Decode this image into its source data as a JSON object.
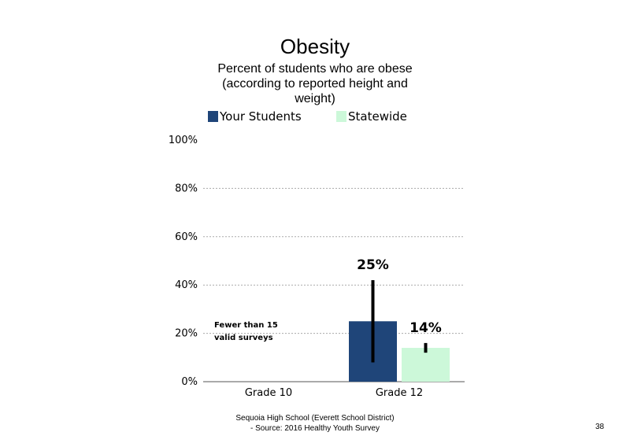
{
  "chart_data": {
    "type": "bar",
    "title": "Obesity",
    "subtitle": "Percent of students who are obese (according to reported height and weight)",
    "categories": [
      "Grade 10",
      "Grade 12"
    ],
    "series": [
      {
        "name": "Your Students",
        "color": "#1f4579",
        "values": [
          null,
          25
        ],
        "error_low": [
          null,
          8
        ],
        "error_high": [
          null,
          42
        ],
        "labels": [
          "",
          "25%"
        ]
      },
      {
        "name": "Statewide",
        "color": "#ccf8d9",
        "values": [
          null,
          14
        ],
        "error_low": [
          null,
          12
        ],
        "error_high": [
          null,
          16
        ],
        "labels": [
          "",
          "14%"
        ]
      }
    ],
    "ylim": [
      0,
      100
    ],
    "yticks": [
      "0%",
      "20%",
      "40%",
      "60%",
      "80%",
      "100%"
    ],
    "ytick_values": [
      0,
      20,
      40,
      60,
      80,
      100
    ],
    "gridlines": true,
    "legend": "top",
    "annotations": [
      {
        "category": "Grade 10",
        "lines": [
          "Fewer than 15",
          "valid surveys"
        ]
      }
    ]
  },
  "footer": {
    "line1": "Sequoia High School (Everett School District)",
    "line2": "- Source: 2016 Healthy Youth Survey"
  },
  "page_number": "38"
}
